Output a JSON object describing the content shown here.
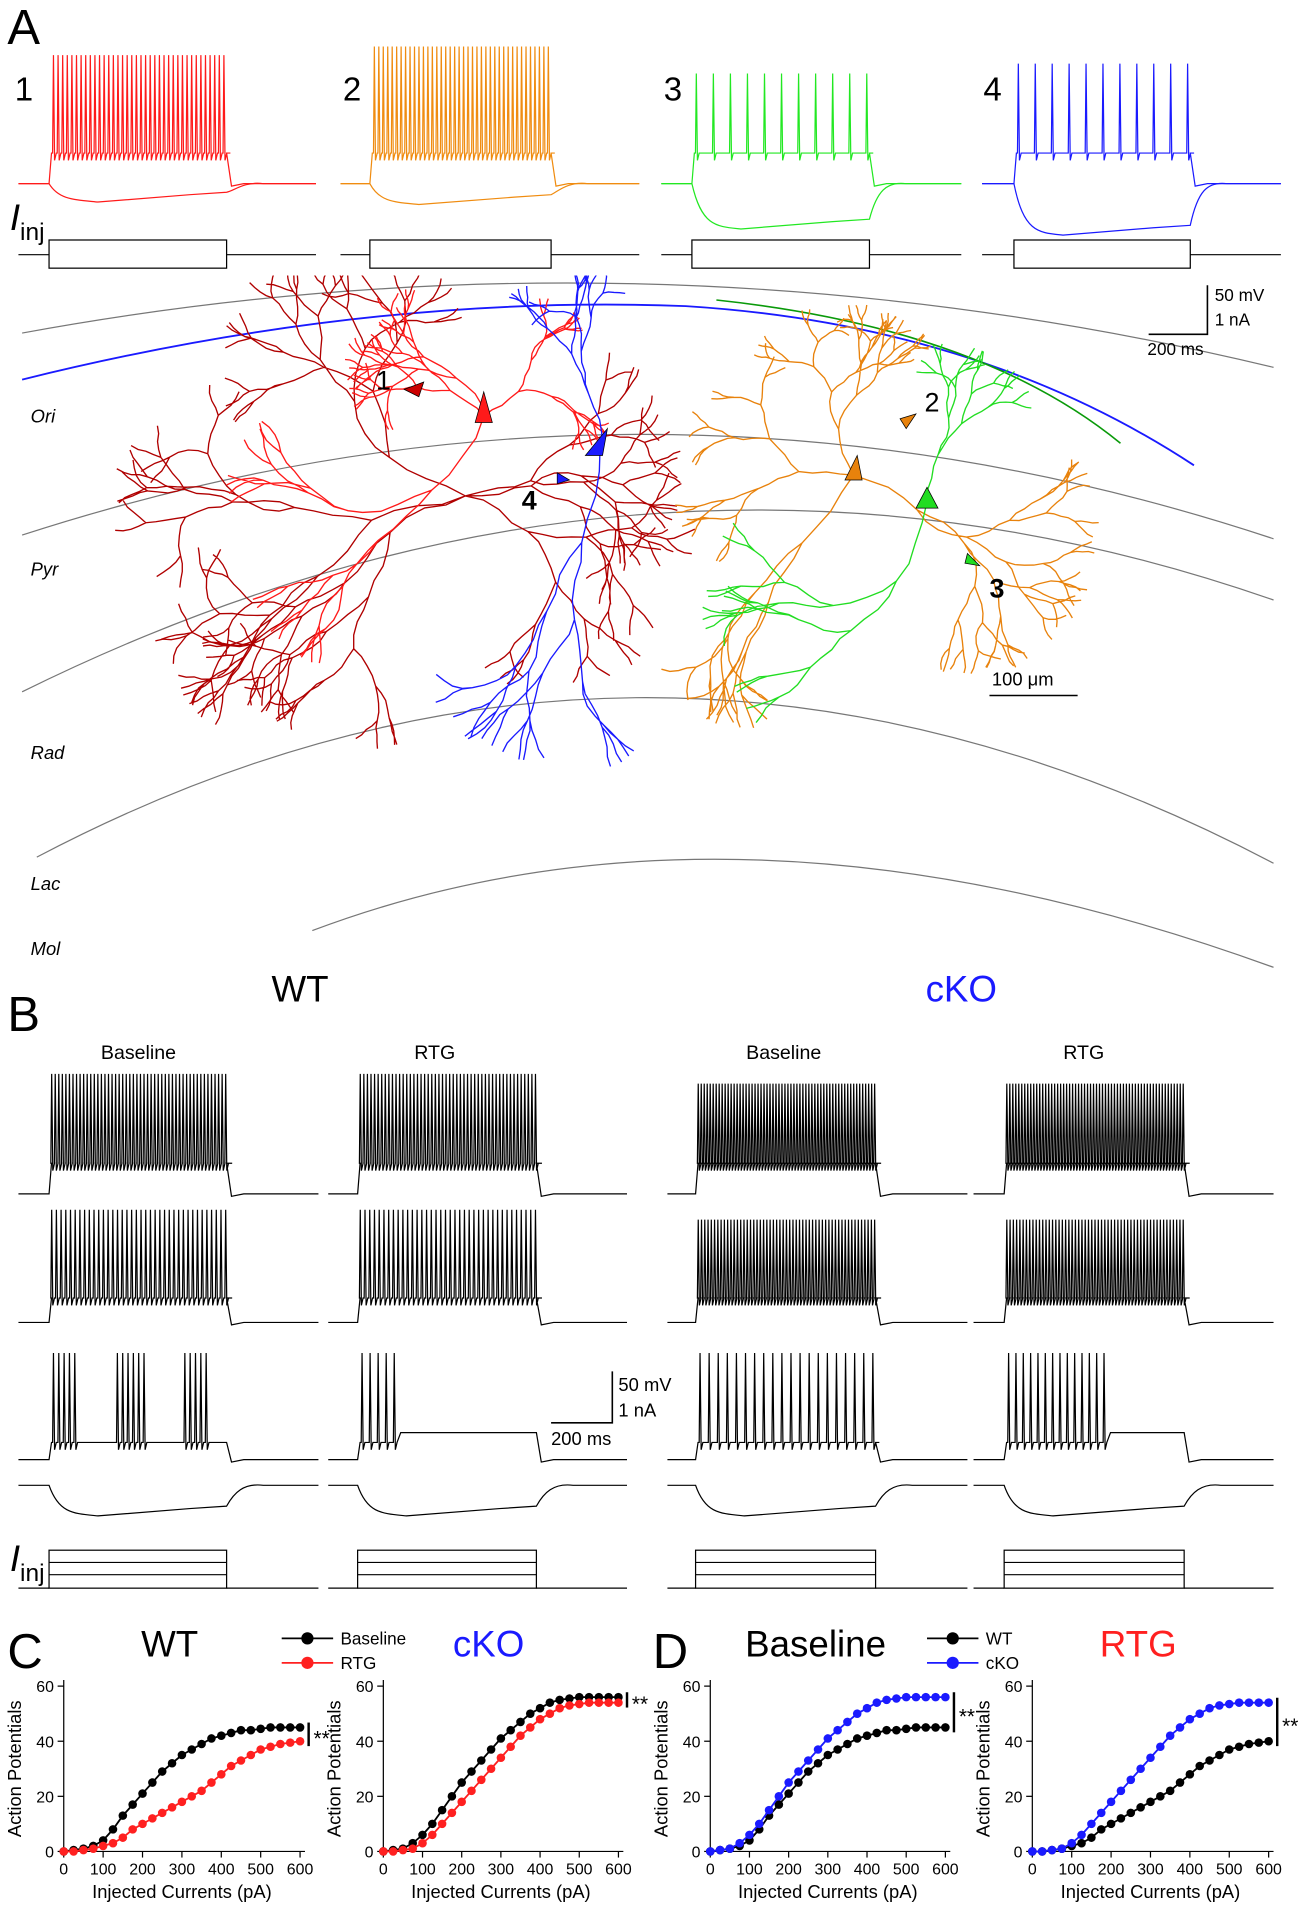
{
  "panel_labels": [
    "A",
    "B",
    "C",
    "D"
  ],
  "iinj": {
    "main": "I",
    "sub": "inj"
  },
  "panel_a": {
    "trace_numbers": [
      "1",
      "2",
      "3",
      "4"
    ],
    "layers": [
      "Ori",
      "Pyr",
      "Rad",
      "Lac",
      "Mol"
    ],
    "scale_mv": "50 mV",
    "scale_na": "1 nA",
    "scale_ms": "200 ms",
    "scale_um": "100 μm"
  },
  "panel_b": {
    "groups": [
      "WT",
      "cKO"
    ],
    "conditions": [
      "Baseline",
      "RTG",
      "Baseline",
      "RTG"
    ],
    "scale_mv": "50 mV",
    "scale_na": "1 nA",
    "scale_ms": "200 ms"
  },
  "chart_data": [
    {
      "type": "line",
      "title": "WT",
      "title_color": "#000000",
      "xlabel": "Injected Currents (pA)",
      "ylabel": "Action Potentials",
      "legend": "above",
      "annotation": "**",
      "x": [
        0,
        25,
        50,
        75,
        100,
        125,
        150,
        175,
        200,
        225,
        250,
        275,
        300,
        325,
        350,
        375,
        400,
        425,
        450,
        475,
        500,
        525,
        550,
        575,
        600
      ],
      "series": [
        {
          "name": "Baseline",
          "color": "#000000",
          "values": [
            0,
            0.5,
            1,
            2,
            4,
            8,
            13,
            17,
            21,
            25,
            29,
            32,
            35,
            37,
            39,
            41,
            42,
            43,
            44,
            44,
            44.5,
            45,
            45,
            45,
            45
          ]
        },
        {
          "name": "RTG",
          "color": "#ff2020",
          "values": [
            0,
            0,
            0.5,
            1,
            2,
            3,
            5,
            8,
            10,
            12,
            14,
            16,
            18,
            20,
            22,
            25,
            28,
            31,
            33,
            35,
            37,
            38,
            39,
            39.5,
            40
          ]
        }
      ],
      "xlim": [
        0,
        600
      ],
      "ylim": [
        0,
        60
      ],
      "xticks": [
        0,
        100,
        200,
        300,
        400,
        500,
        600
      ],
      "yticks": [
        0,
        20,
        40,
        60
      ]
    },
    {
      "type": "line",
      "title": "cKO",
      "title_color": "#1a1aff",
      "xlabel": "Injected Currents (pA)",
      "ylabel": "Action Potentials",
      "annotation": "**",
      "x": [
        0,
        25,
        50,
        75,
        100,
        125,
        150,
        175,
        200,
        225,
        250,
        275,
        300,
        325,
        350,
        375,
        400,
        425,
        450,
        475,
        500,
        525,
        550,
        575,
        600
      ],
      "series": [
        {
          "name": "Baseline",
          "color": "#000000",
          "values": [
            0,
            0.5,
            1,
            3,
            6,
            10,
            15,
            20,
            25,
            29,
            33,
            37,
            41,
            44,
            47,
            50,
            52,
            54,
            55,
            55.5,
            56,
            56,
            56,
            56,
            56
          ]
        },
        {
          "name": "RTG",
          "color": "#ff2020",
          "values": [
            0,
            0,
            0.5,
            1,
            3,
            6,
            10,
            14,
            18,
            22,
            26,
            30,
            34,
            38,
            42,
            45,
            48,
            50,
            52,
            53,
            53.5,
            54,
            54,
            54,
            54
          ]
        }
      ],
      "xlim": [
        0,
        600
      ],
      "ylim": [
        0,
        60
      ],
      "xticks": [
        0,
        100,
        200,
        300,
        400,
        500,
        600
      ],
      "yticks": [
        0,
        20,
        40,
        60
      ]
    },
    {
      "type": "line",
      "title": "Baseline",
      "title_color": "#000000",
      "xlabel": "Injected Currents (pA)",
      "ylabel": "Action Potentials",
      "legend": "above",
      "annotation": "**",
      "x": [
        0,
        25,
        50,
        75,
        100,
        125,
        150,
        175,
        200,
        225,
        250,
        275,
        300,
        325,
        350,
        375,
        400,
        425,
        450,
        475,
        500,
        525,
        550,
        575,
        600
      ],
      "series": [
        {
          "name": "WT",
          "color": "#000000",
          "values": [
            0,
            0.5,
            1,
            2,
            4,
            8,
            13,
            17,
            21,
            25,
            29,
            32,
            35,
            37,
            39,
            41,
            42,
            43,
            44,
            44,
            44.5,
            45,
            45,
            45,
            45
          ]
        },
        {
          "name": "cKO",
          "color": "#1a1aff",
          "values": [
            0,
            0.5,
            1,
            3,
            6,
            10,
            15,
            20,
            25,
            29,
            33,
            37,
            41,
            44,
            47,
            50,
            52,
            54,
            55,
            55.5,
            56,
            56,
            56,
            56,
            56
          ]
        }
      ],
      "xlim": [
        0,
        600
      ],
      "ylim": [
        0,
        60
      ],
      "xticks": [
        0,
        100,
        200,
        300,
        400,
        500,
        600
      ],
      "yticks": [
        0,
        20,
        40,
        60
      ]
    },
    {
      "type": "line",
      "title": "RTG",
      "title_color": "#ff2020",
      "xlabel": "Injected Currents (pA)",
      "ylabel": "Action Potentials",
      "annotation": "**",
      "x": [
        0,
        25,
        50,
        75,
        100,
        125,
        150,
        175,
        200,
        225,
        250,
        275,
        300,
        325,
        350,
        375,
        400,
        425,
        450,
        475,
        500,
        525,
        550,
        575,
        600
      ],
      "series": [
        {
          "name": "WT",
          "color": "#000000",
          "values": [
            0,
            0,
            0.5,
            1,
            2,
            3,
            5,
            8,
            10,
            12,
            14,
            16,
            18,
            20,
            22,
            25,
            28,
            31,
            33,
            35,
            37,
            38,
            39,
            39.5,
            40
          ]
        },
        {
          "name": "cKO",
          "color": "#1a1aff",
          "values": [
            0,
            0,
            0.5,
            1,
            3,
            6,
            10,
            14,
            18,
            22,
            26,
            30,
            34,
            38,
            42,
            45,
            48,
            50,
            52,
            53,
            53.5,
            54,
            54,
            54,
            54
          ]
        }
      ],
      "xlim": [
        0,
        600
      ],
      "ylim": [
        0,
        60
      ],
      "xticks": [
        0,
        100,
        200,
        300,
        400,
        500,
        600
      ],
      "yticks": [
        0,
        20,
        40,
        60
      ]
    }
  ]
}
